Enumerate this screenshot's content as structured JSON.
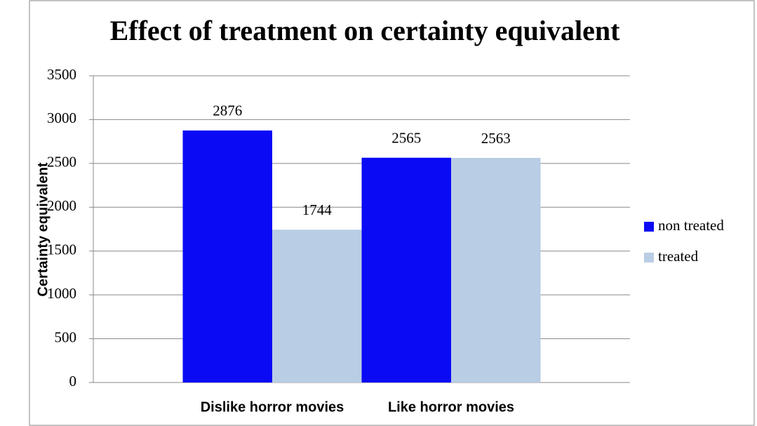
{
  "chart_data": {
    "type": "bar",
    "title": "Effect of treatment on  certainty equivalent",
    "y_label": "Certainty equivalent",
    "categories": [
      "Dislike horror movies",
      "Like horror movies"
    ],
    "series": [
      {
        "name": "non treated",
        "color": "#0a0af5",
        "values": [
          2876,
          2565
        ]
      },
      {
        "name": "treated",
        "color": "#b9cde4",
        "values": [
          1744,
          2563
        ]
      }
    ],
    "ylim": [
      0,
      3500
    ],
    "yticks": [
      0,
      500,
      1000,
      1500,
      2000,
      2500,
      3000,
      3500
    ],
    "grid": true,
    "legend": "right"
  }
}
